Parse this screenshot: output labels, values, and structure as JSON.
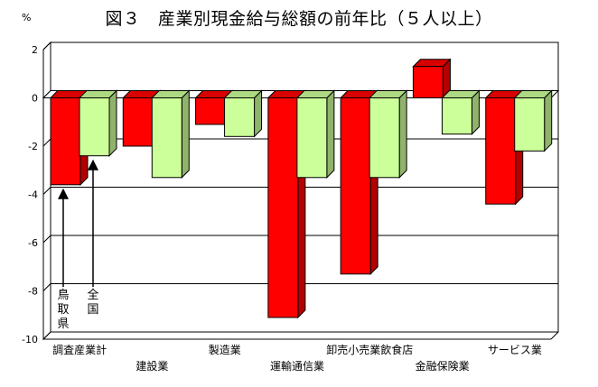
{
  "title": "図３　産業別現金給与総額の前年比（５人以上）",
  "chart_data": {
    "type": "bar",
    "y_unit": "%",
    "categories": [
      "調査産業計",
      "建設業",
      "製造業",
      "運輸通信業",
      "卸売小売業飲食店",
      "金融保険業",
      "サービス業"
    ],
    "series": [
      {
        "name": "鳥取県",
        "color": "#ff0000",
        "values": [
          -3.6,
          -2.0,
          -1.1,
          -9.1,
          -7.3,
          1.3,
          -4.4
        ]
      },
      {
        "name": "全国",
        "color": "#ccff99",
        "values": [
          -2.4,
          -3.3,
          -1.6,
          -3.3,
          -3.3,
          -1.5,
          -2.2
        ]
      }
    ],
    "ylim": [
      -10,
      2
    ],
    "yticks": [
      2,
      0,
      -2,
      -4,
      -6,
      -8,
      -10
    ],
    "grid": true,
    "annotations": [
      {
        "series": "鳥取県",
        "text": "鳥取県"
      },
      {
        "series": "全国",
        "text": "全国"
      }
    ]
  }
}
